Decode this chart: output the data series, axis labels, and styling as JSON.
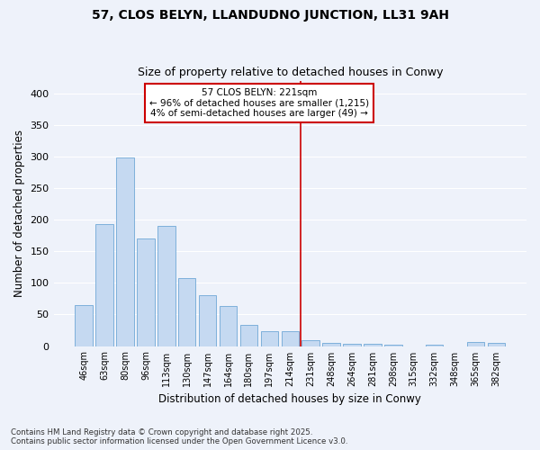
{
  "title": "57, CLOS BELYN, LLANDUDNO JUNCTION, LL31 9AH",
  "subtitle": "Size of property relative to detached houses in Conwy",
  "xlabel": "Distribution of detached houses by size in Conwy",
  "ylabel": "Number of detached properties",
  "categories": [
    "46sqm",
    "63sqm",
    "80sqm",
    "96sqm",
    "113sqm",
    "130sqm",
    "147sqm",
    "164sqm",
    "180sqm",
    "197sqm",
    "214sqm",
    "231sqm",
    "248sqm",
    "264sqm",
    "281sqm",
    "298sqm",
    "315sqm",
    "332sqm",
    "348sqm",
    "365sqm",
    "382sqm"
  ],
  "values": [
    65,
    193,
    298,
    170,
    190,
    108,
    80,
    63,
    33,
    23,
    23,
    10,
    5,
    4,
    3,
    2,
    0,
    2,
    0,
    6,
    5
  ],
  "bar_color": "#c5d9f1",
  "bar_edge_color": "#6fa8d6",
  "vline_index": 10.5,
  "marker_line1": "57 CLOS BELYN: 221sqm",
  "marker_line2": "← 96% of detached houses are smaller (1,215)",
  "marker_line3": "4% of semi-detached houses are larger (49) →",
  "vline_color": "#cc0000",
  "annotation_box_edge": "#cc0000",
  "background_color": "#eef2fa",
  "grid_color": "#ffffff",
  "footer_line1": "Contains HM Land Registry data © Crown copyright and database right 2025.",
  "footer_line2": "Contains public sector information licensed under the Open Government Licence v3.0.",
  "ylim": [
    0,
    420
  ],
  "yticks": [
    0,
    50,
    100,
    150,
    200,
    250,
    300,
    350,
    400
  ]
}
